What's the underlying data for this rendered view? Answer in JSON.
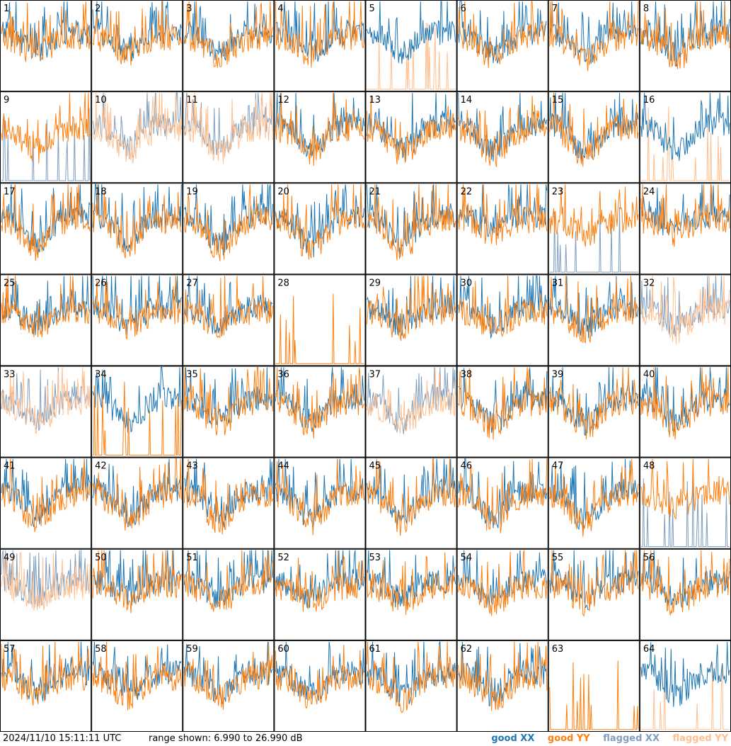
{
  "chart_data": {
    "type": "line",
    "grid": {
      "rows": 8,
      "cols": 8
    },
    "tiles": [
      {
        "label": "1",
        "state": "good"
      },
      {
        "label": "2",
        "state": "good"
      },
      {
        "label": "3",
        "state": "good"
      },
      {
        "label": "4",
        "state": "good"
      },
      {
        "label": "5",
        "state": "yy_flagged"
      },
      {
        "label": "6",
        "state": "good"
      },
      {
        "label": "7",
        "state": "good"
      },
      {
        "label": "8",
        "state": "good"
      },
      {
        "label": "9",
        "state": "xx_flagged"
      },
      {
        "label": "10",
        "state": "both_flagged"
      },
      {
        "label": "11",
        "state": "both_flagged"
      },
      {
        "label": "12",
        "state": "good"
      },
      {
        "label": "13",
        "state": "good"
      },
      {
        "label": "14",
        "state": "good"
      },
      {
        "label": "15",
        "state": "good"
      },
      {
        "label": "16",
        "state": "yy_flagged"
      },
      {
        "label": "17",
        "state": "good"
      },
      {
        "label": "18",
        "state": "good"
      },
      {
        "label": "19",
        "state": "good"
      },
      {
        "label": "20",
        "state": "good"
      },
      {
        "label": "21",
        "state": "good"
      },
      {
        "label": "22",
        "state": "good"
      },
      {
        "label": "23",
        "state": "xx_flagged"
      },
      {
        "label": "24",
        "state": "good"
      },
      {
        "label": "25",
        "state": "good"
      },
      {
        "label": "26",
        "state": "good"
      },
      {
        "label": "27",
        "state": "good"
      },
      {
        "label": "28",
        "state": "dead"
      },
      {
        "label": "29",
        "state": "good"
      },
      {
        "label": "30",
        "state": "good"
      },
      {
        "label": "31",
        "state": "good"
      },
      {
        "label": "32",
        "state": "both_flagged"
      },
      {
        "label": "33",
        "state": "both_flagged"
      },
      {
        "label": "34",
        "state": "yy_bad"
      },
      {
        "label": "35",
        "state": "good"
      },
      {
        "label": "36",
        "state": "good"
      },
      {
        "label": "37",
        "state": "both_flagged"
      },
      {
        "label": "38",
        "state": "good"
      },
      {
        "label": "39",
        "state": "good"
      },
      {
        "label": "40",
        "state": "good"
      },
      {
        "label": "41",
        "state": "good"
      },
      {
        "label": "42",
        "state": "good"
      },
      {
        "label": "43",
        "state": "good"
      },
      {
        "label": "44",
        "state": "good"
      },
      {
        "label": "45",
        "state": "good"
      },
      {
        "label": "46",
        "state": "good"
      },
      {
        "label": "47",
        "state": "good"
      },
      {
        "label": "48",
        "state": "xx_flagged"
      },
      {
        "label": "49",
        "state": "both_flagged"
      },
      {
        "label": "50",
        "state": "good"
      },
      {
        "label": "51",
        "state": "good"
      },
      {
        "label": "52",
        "state": "good"
      },
      {
        "label": "53",
        "state": "good"
      },
      {
        "label": "54",
        "state": "good"
      },
      {
        "label": "55",
        "state": "good"
      },
      {
        "label": "56",
        "state": "good"
      },
      {
        "label": "57",
        "state": "good"
      },
      {
        "label": "58",
        "state": "good"
      },
      {
        "label": "59",
        "state": "good"
      },
      {
        "label": "60",
        "state": "good"
      },
      {
        "label": "61",
        "state": "good"
      },
      {
        "label": "62",
        "state": "good"
      },
      {
        "label": "63",
        "state": "dead"
      },
      {
        "label": "64",
        "state": "yy_flagged"
      }
    ],
    "ylim": [
      6.99,
      26.99
    ],
    "y_unit": "dB",
    "legend": [
      {
        "name": "good XX",
        "color": "#1f77b4"
      },
      {
        "name": "good YY",
        "color": "#ff7f0e"
      },
      {
        "name": "flagged XX",
        "color": "#7f9fbf"
      },
      {
        "name": "flagged YY",
        "color": "#ffbf8f"
      }
    ]
  },
  "footer": {
    "timestamp": "2024/11/10 15:11:11 UTC",
    "range_text": "range shown: 6.990 to 26.990 dB",
    "legend_labels": [
      "good XX",
      "good YY",
      "flagged XX",
      "flagged YY"
    ]
  },
  "colors": {
    "good_xx": "#1f77b4",
    "good_yy": "#ff7f0e",
    "flagged_xx": "#7f9fbf",
    "flagged_yy": "#ffbf8f"
  }
}
